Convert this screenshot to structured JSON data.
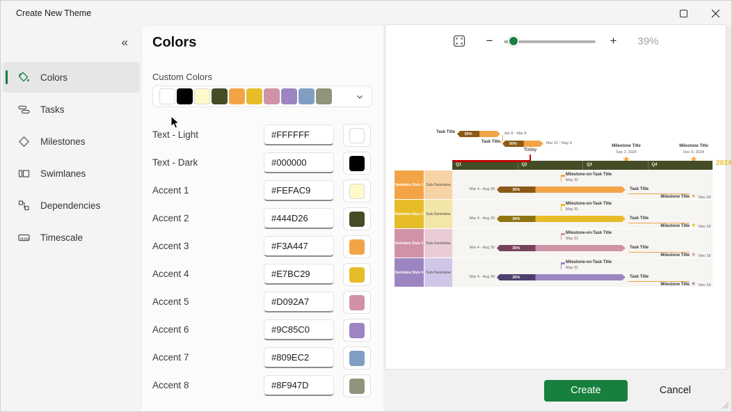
{
  "window": {
    "title": "Create New Theme"
  },
  "sidebar": {
    "collapse_glyph": "«",
    "items": [
      {
        "label": "Colors",
        "icon": "paint-bucket-icon",
        "selected": true
      },
      {
        "label": "Tasks",
        "icon": "task-bars-icon",
        "selected": false
      },
      {
        "label": "Milestones",
        "icon": "diamond-icon",
        "selected": false
      },
      {
        "label": "Swimlanes",
        "icon": "swimlanes-icon",
        "selected": false
      },
      {
        "label": "Dependencies",
        "icon": "dependencies-icon",
        "selected": false
      },
      {
        "label": "Timescale",
        "icon": "timescale-icon",
        "selected": false
      }
    ]
  },
  "panel": {
    "title": "Colors",
    "custom_colors_label": "Custom Colors",
    "custom_swatches": [
      "#FFFFFF",
      "#000000",
      "#FEFAC9",
      "#444D26",
      "#F3A447",
      "#E7BC29",
      "#D092A7",
      "#9C85C0",
      "#809EC2",
      "#8F947D"
    ],
    "rows": [
      {
        "label": "Text - Light",
        "value": "#FFFFFF"
      },
      {
        "label": "Text - Dark",
        "value": "#000000"
      },
      {
        "label": "Accent 1",
        "value": "#FEFAC9"
      },
      {
        "label": "Accent 2",
        "value": "#444D26"
      },
      {
        "label": "Accent 3",
        "value": "#F3A447"
      },
      {
        "label": "Accent 4",
        "value": "#E7BC29"
      },
      {
        "label": "Accent 5",
        "value": "#D092A7"
      },
      {
        "label": "Accent 6",
        "value": "#9C85C0"
      },
      {
        "label": "Accent 7",
        "value": "#809EC2"
      },
      {
        "label": "Accent 8",
        "value": "#8F947D"
      }
    ]
  },
  "preview": {
    "zoom_percent": "39%",
    "gantt": {
      "year": "2024",
      "year_color": "#E7BC29",
      "timeline_band_color": "#444D26",
      "today_line_color": "#C00000",
      "quarters": [
        "Q1",
        "Q2",
        "Q3",
        "Q4"
      ],
      "today_label": "Today",
      "top_tasks": [
        {
          "label": "Task Title",
          "progress": "50%",
          "dates": "Jan 8 - Mar 8",
          "color": "#F3A447",
          "progress_color": "#8A5A17"
        },
        {
          "label": "Task Title",
          "progress": "50%",
          "dates": "Mar 31 - May 9",
          "color": "#F3A447",
          "progress_color": "#8A5A17"
        }
      ],
      "timeline_milestones": [
        {
          "title": "Milestone Title",
          "date": "Sep 2, 2024"
        },
        {
          "title": "Milestone Title",
          "date": "Dec 6, 2024"
        }
      ],
      "swimlanes": [
        {
          "name": "Swimlane Style 1",
          "sub": "Sub-Swimlane",
          "accent": "#F3A447",
          "sub_color": "#F8D3A5",
          "progress_color": "#8A5A17",
          "task": {
            "dates": "Mar 4 - Aug 30",
            "progress": "35%",
            "label": "Task Title"
          },
          "task_milestone": {
            "title": "Milestone-on-Task Title",
            "date": "May 31"
          },
          "milestone": {
            "title": "Milestone Title",
            "date": "Nov 18"
          }
        },
        {
          "name": "Swimlane Style 2",
          "sub": "Sub-Swimlane",
          "accent": "#E7BC29",
          "sub_color": "#F3E6A9",
          "progress_color": "#8F7414",
          "task": {
            "dates": "Mar 4 - Aug 30",
            "progress": "35%",
            "label": "Task Title"
          },
          "task_milestone": {
            "title": "Milestone-on-Task Title",
            "date": "May 31"
          },
          "milestone": {
            "title": "Milestone Title",
            "date": "Nov 18"
          }
        },
        {
          "name": "Swimlane Style 3",
          "sub": "Sub-Swimlane",
          "accent": "#D092A7",
          "sub_color": "#EACCD6",
          "progress_color": "#77435A",
          "task": {
            "dates": "Mar 4 - Aug 30",
            "progress": "35%",
            "label": "Task Title"
          },
          "task_milestone": {
            "title": "Milestone-on-Task Title",
            "date": "May 31"
          },
          "milestone": {
            "title": "Milestone Title",
            "date": "Nov 18"
          }
        },
        {
          "name": "Swimlane Style 4",
          "sub": "Sub-Swimlane",
          "accent": "#9C85C0",
          "sub_color": "#D0C6E8",
          "progress_color": "#4E3F70",
          "task": {
            "dates": "Mar 4 - Aug 30",
            "progress": "35%",
            "label": "Task Title"
          },
          "task_milestone": {
            "title": "Milestone-on-Task Title",
            "date": "May 31"
          },
          "milestone": {
            "title": "Milestone Title",
            "date": "Nov 18"
          }
        }
      ]
    }
  },
  "footer": {
    "create_label": "Create",
    "cancel_label": "Cancel"
  },
  "theme": {
    "accent_green": "#107C41",
    "create_button_green": "#17803E"
  }
}
